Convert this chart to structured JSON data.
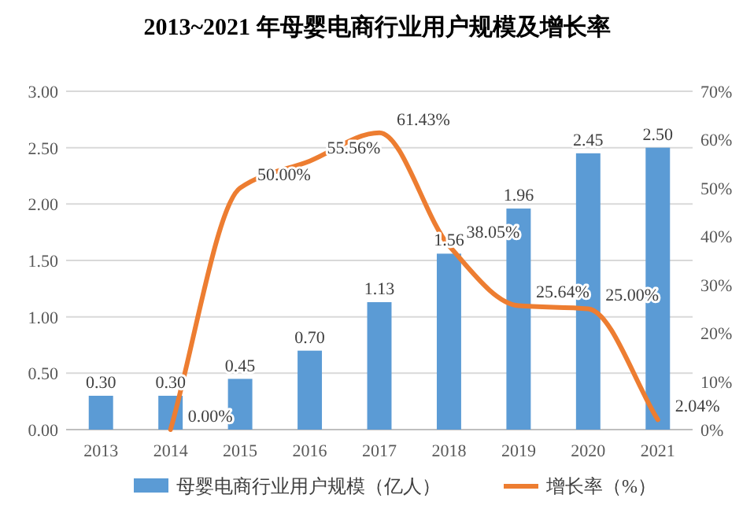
{
  "chart_data": {
    "type": "bar",
    "title": "2013~2021 年母婴电商行业用户规模及增长率",
    "categories": [
      "2013",
      "2014",
      "2015",
      "2016",
      "2017",
      "2018",
      "2019",
      "2020",
      "2021"
    ],
    "series": [
      {
        "name": "母婴电商行业用户规模（亿人）",
        "color": "#5b9bd5",
        "values": [
          0.3,
          0.3,
          0.45,
          0.7,
          1.13,
          1.56,
          1.96,
          2.45,
          2.5
        ],
        "value_labels": [
          "0.30",
          "0.30",
          "0.45",
          "0.70",
          "1.13",
          "1.56",
          "1.96",
          "2.45",
          "2.50"
        ]
      },
      {
        "name": "增长率（%）",
        "type": "line",
        "axis": "y2",
        "color": "#ed7d31",
        "values": [
          null,
          0.0,
          50.0,
          55.56,
          61.43,
          38.05,
          25.64,
          25.0,
          2.04
        ],
        "value_labels": [
          null,
          "0.00%",
          "50.00%",
          "55.56%",
          "61.43%",
          "38.05%",
          "25.64%",
          "25.00%",
          "2.04%"
        ]
      }
    ],
    "ylim": [
      0,
      3
    ],
    "yticks": [
      {
        "value": 0,
        "label": "0.00"
      },
      {
        "value": 0.5,
        "label": "0.50"
      },
      {
        "value": 1,
        "label": "1.00"
      },
      {
        "value": 1.5,
        "label": "1.50"
      },
      {
        "value": 2,
        "label": "2.00"
      },
      {
        "value": 2.5,
        "label": "2.50"
      },
      {
        "value": 3,
        "label": "3.00"
      }
    ],
    "y2lim": [
      0,
      70
    ],
    "y2ticks": [
      {
        "value": 0,
        "label": "0%"
      },
      {
        "value": 10,
        "label": "10%"
      },
      {
        "value": 20,
        "label": "20%"
      },
      {
        "value": 30,
        "label": "30%"
      },
      {
        "value": 40,
        "label": "40%"
      },
      {
        "value": 50,
        "label": "50%"
      },
      {
        "value": 60,
        "label": "60%"
      },
      {
        "value": 70,
        "label": "70%"
      }
    ],
    "grid": "y",
    "legend": "bottom"
  }
}
